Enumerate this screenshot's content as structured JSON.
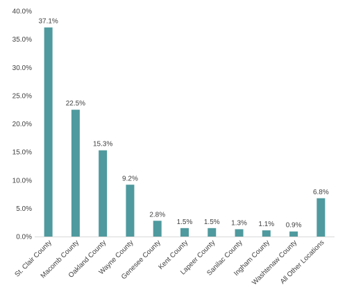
{
  "chart_data": {
    "type": "bar",
    "categories": [
      "St. Clair County",
      "Macomb County",
      "Oakland County",
      "Wayne County",
      "Genesee County",
      "Kent County",
      "Lapeer County",
      "Sanilac County",
      "Ingham County",
      "Washtenaw County",
      "All Other Locations"
    ],
    "values": [
      37.1,
      22.5,
      15.3,
      9.2,
      2.8,
      1.5,
      1.5,
      1.3,
      1.1,
      0.9,
      6.8
    ],
    "data_labels": [
      "37.1%",
      "22.5%",
      "15.3%",
      "9.2%",
      "2.8%",
      "1.5%",
      "1.5%",
      "1.3%",
      "1.1%",
      "0.9%",
      "6.8%"
    ],
    "y_ticks": [
      0,
      5,
      10,
      15,
      20,
      25,
      30,
      35,
      40
    ],
    "y_tick_labels": [
      "0.0%",
      "5.0%",
      "10.0%",
      "15.0%",
      "20.0%",
      "25.0%",
      "30.0%",
      "35.0%",
      "40.0%"
    ],
    "ylim": [
      0,
      40
    ],
    "title": "",
    "xlabel": "",
    "ylabel": "",
    "grid": false,
    "legend": "none",
    "bar_color": "#4f9a9e"
  }
}
